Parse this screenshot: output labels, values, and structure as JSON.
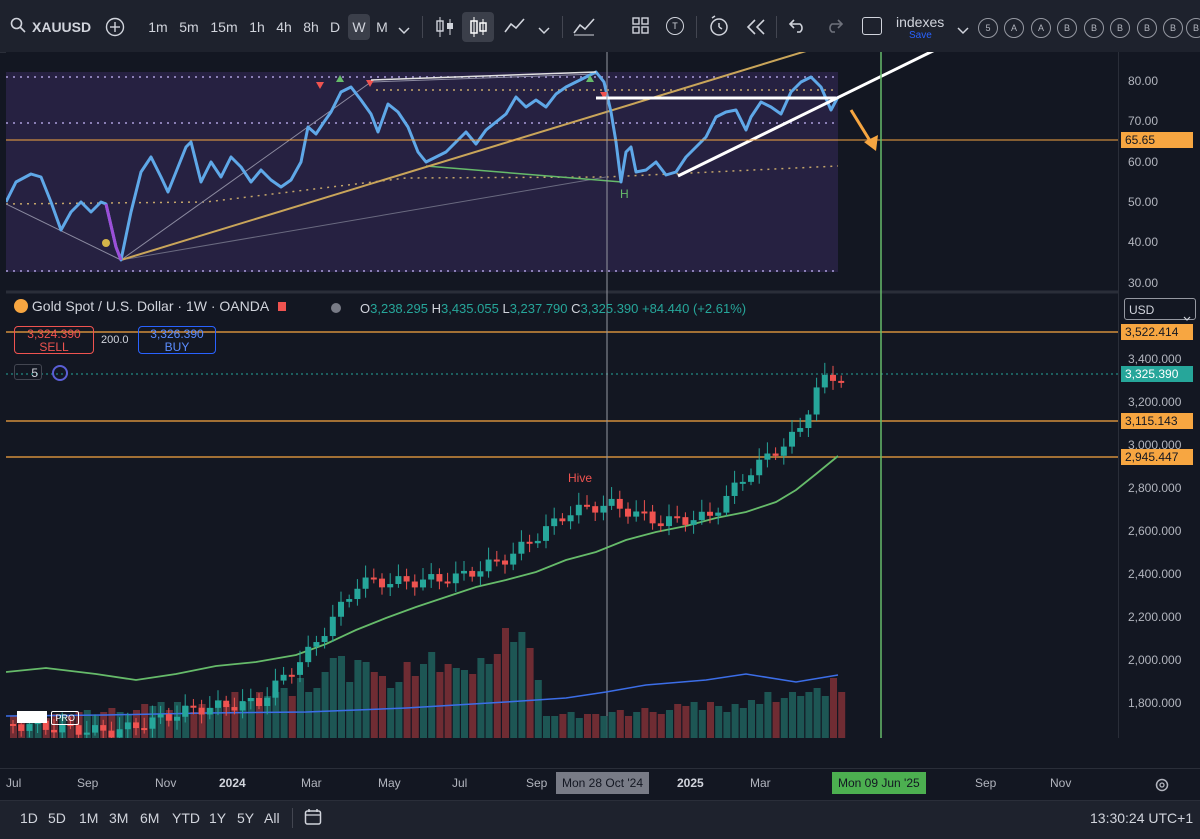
{
  "toolbar": {
    "symbol": "XAUUSD",
    "intervals": [
      "1m",
      "5m",
      "15m",
      "1h",
      "4h",
      "8h",
      "D",
      "W",
      "M"
    ],
    "active_interval": "W",
    "indexes_label": "indexes",
    "save_label": "Save",
    "badges": [
      "5",
      "A",
      "A",
      "B",
      "B",
      "B",
      "B",
      "B",
      "B"
    ]
  },
  "legend": {
    "title": "Gold Spot / U.S. Dollar · 1W · OANDA",
    "o_label": "O",
    "o": "3,238.295",
    "h_label": "H",
    "h": "3,435.055",
    "l_label": "L",
    "l": "3,237.790",
    "c_label": "C",
    "c": "3,325.390",
    "change": "+84.440 (+2.61%)"
  },
  "trade": {
    "sell_price": "3,324.390",
    "sell_label": "SELL",
    "spread": "200.0",
    "buy_price": "3,326.390",
    "buy_label": "BUY",
    "indicators_count": "5"
  },
  "currency": "USD",
  "osc_axis": [
    "80.00",
    "70.00",
    "60.00",
    "50.00",
    "40.00",
    "30.00"
  ],
  "osc_highlight": "65.65",
  "price_axis": [
    "3,400.000",
    "3,200.000",
    "3,000.000",
    "2,800.000",
    "2,600.000",
    "2,400.000",
    "2,200.000",
    "2,000.000",
    "1,800.000"
  ],
  "price_lines": [
    "3,522.414",
    "3,115.143",
    "2,945.447"
  ],
  "current_price": "3,325.390",
  "annotations": {
    "hive": "Hive",
    "h_mark": "H",
    "pro_logo": "PRO"
  },
  "time_axis": [
    "Jul",
    "Sep",
    "Nov",
    "2024",
    "Mar",
    "May",
    "Jul",
    "Sep",
    "2025",
    "Mar",
    "Sep",
    "Nov"
  ],
  "crosshair_date": "Mon 28 Oct '24",
  "marker_date": "Mon 09 Jun '25",
  "ranges": [
    "1D",
    "5D",
    "1M",
    "3M",
    "6M",
    "YTD",
    "1Y",
    "5Y",
    "All"
  ],
  "clock": "13:30:24 UTC+1",
  "colors": {
    "up": "#26a69a",
    "down": "#ef5350",
    "rsi": "#5fa8e8",
    "level": "#f7a641",
    "ma": "#66bb6a",
    "trend": "#c9a55a"
  }
}
